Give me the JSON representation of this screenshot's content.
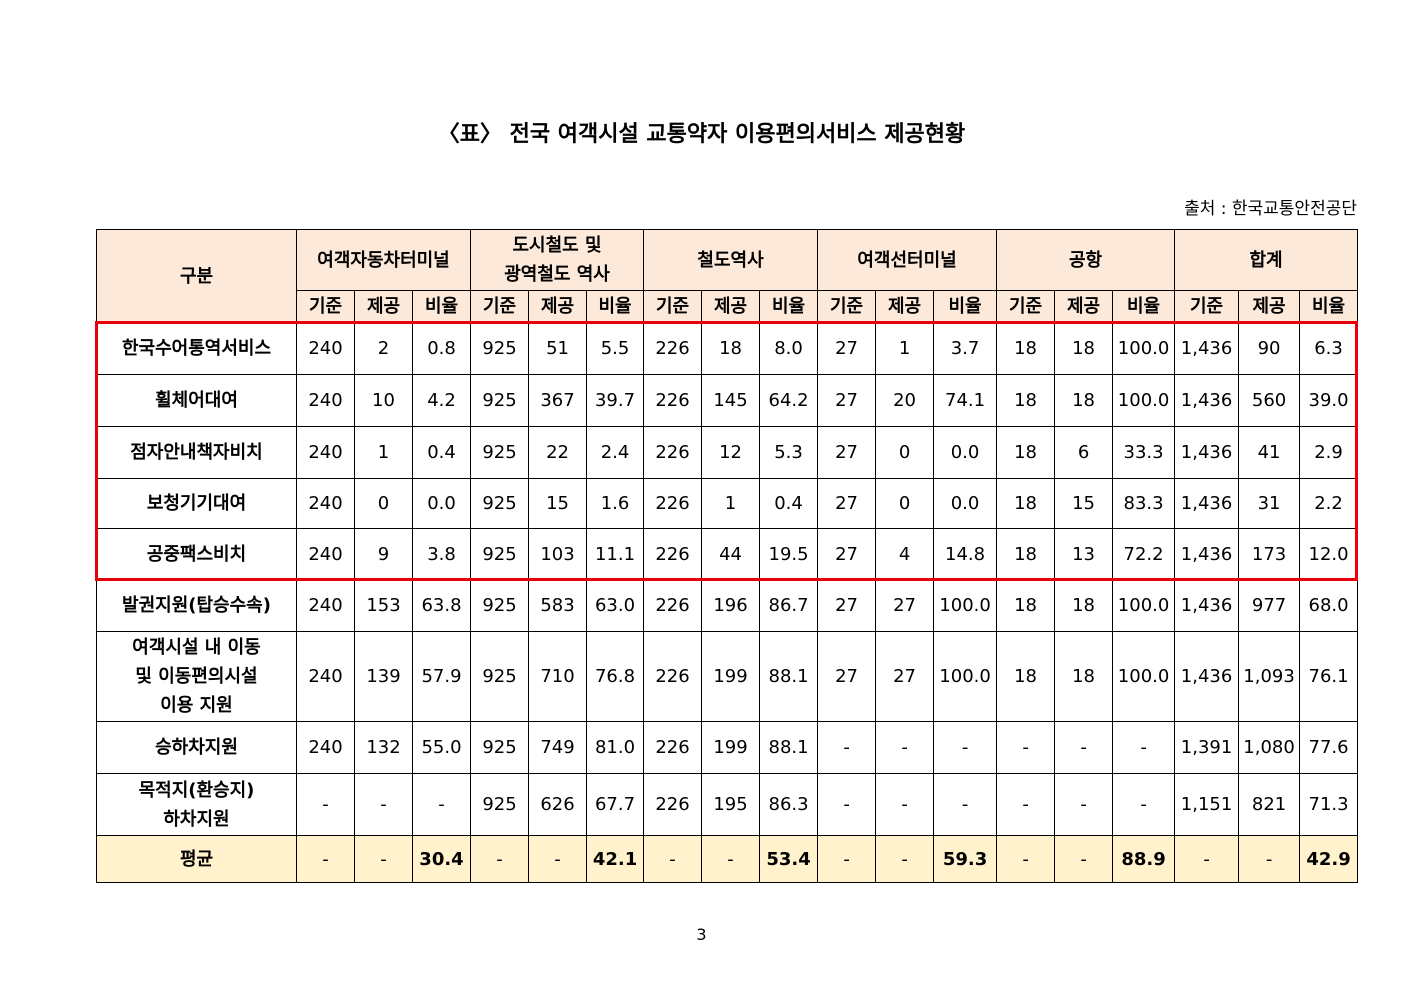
{
  "header": {
    "title": "〈표〉 전국 여객시설 교통약자 이용편의서비스 제공현황",
    "source": "출처 : 한국교통안전공단"
  },
  "table": {
    "corner": "구분",
    "groups": [
      "여객자동차터미널",
      "도시철도 및\n광역철도 역사",
      "철도역사",
      "여객선터미널",
      "공항",
      "합계"
    ],
    "subheaders": [
      "기준",
      "제공",
      "비율"
    ],
    "rows": [
      {
        "label": "한국수어통역서비스",
        "cells": [
          "240",
          "2",
          "0.8",
          "925",
          "51",
          "5.5",
          "226",
          "18",
          "8.0",
          "27",
          "1",
          "3.7",
          "18",
          "18",
          "100.0",
          "1,436",
          "90",
          "6.3"
        ]
      },
      {
        "label": "휠체어대여",
        "cells": [
          "240",
          "10",
          "4.2",
          "925",
          "367",
          "39.7",
          "226",
          "145",
          "64.2",
          "27",
          "20",
          "74.1",
          "18",
          "18",
          "100.0",
          "1,436",
          "560",
          "39.0"
        ]
      },
      {
        "label": "점자안내책자비치",
        "cells": [
          "240",
          "1",
          "0.4",
          "925",
          "22",
          "2.4",
          "226",
          "12",
          "5.3",
          "27",
          "0",
          "0.0",
          "18",
          "6",
          "33.3",
          "1,436",
          "41",
          "2.9"
        ]
      },
      {
        "label": "보청기기대여",
        "cells": [
          "240",
          "0",
          "0.0",
          "925",
          "15",
          "1.6",
          "226",
          "1",
          "0.4",
          "27",
          "0",
          "0.0",
          "18",
          "15",
          "83.3",
          "1,436",
          "31",
          "2.2"
        ]
      },
      {
        "label": "공중팩스비치",
        "cells": [
          "240",
          "9",
          "3.8",
          "925",
          "103",
          "11.1",
          "226",
          "44",
          "19.5",
          "27",
          "4",
          "14.8",
          "18",
          "13",
          "72.2",
          "1,436",
          "173",
          "12.0"
        ]
      },
      {
        "label": "발권지원(탑승수속)",
        "cells": [
          "240",
          "153",
          "63.8",
          "925",
          "583",
          "63.0",
          "226",
          "196",
          "86.7",
          "27",
          "27",
          "100.0",
          "18",
          "18",
          "100.0",
          "1,436",
          "977",
          "68.0"
        ]
      },
      {
        "label": "여객시설 내 이동\n및 이동편의시설\n이용 지원",
        "cells": [
          "240",
          "139",
          "57.9",
          "925",
          "710",
          "76.8",
          "226",
          "199",
          "88.1",
          "27",
          "27",
          "100.0",
          "18",
          "18",
          "100.0",
          "1,436",
          "1,093",
          "76.1"
        ]
      },
      {
        "label": "승하차지원",
        "cells": [
          "240",
          "132",
          "55.0",
          "925",
          "749",
          "81.0",
          "226",
          "199",
          "88.1",
          "-",
          "-",
          "-",
          "-",
          "-",
          "-",
          "1,391",
          "1,080",
          "77.6"
        ]
      },
      {
        "label": "목적지(환승지)\n하차지원",
        "cells": [
          "-",
          "-",
          "-",
          "925",
          "626",
          "67.7",
          "226",
          "195",
          "86.3",
          "-",
          "-",
          "-",
          "-",
          "-",
          "-",
          "1,151",
          "821",
          "71.3"
        ]
      },
      {
        "label": "평균",
        "cells": [
          "-",
          "-",
          "30.4",
          "-",
          "-",
          "42.1",
          "-",
          "-",
          "53.4",
          "-",
          "-",
          "59.3",
          "-",
          "-",
          "88.9",
          "-",
          "-",
          "42.9"
        ]
      }
    ]
  },
  "footer": {
    "page_number": "3"
  }
}
